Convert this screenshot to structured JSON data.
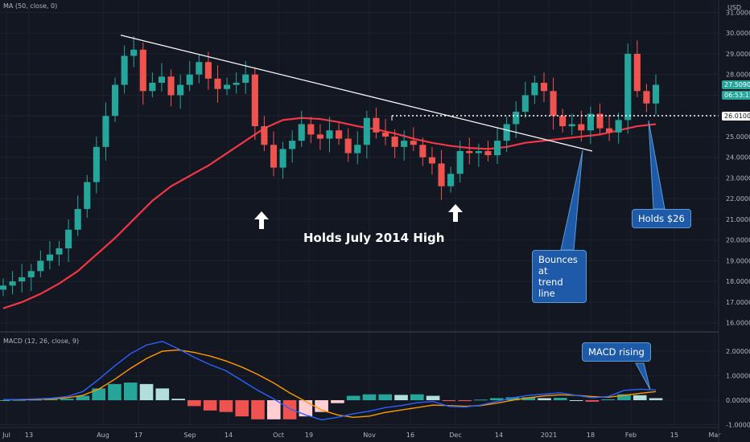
{
  "indicators": {
    "ma_label": "MA (50, close, 0)",
    "macd_label": "MACD (12, 26, close, 9)"
  },
  "currency": "USD",
  "tags": {
    "price": "27.50900",
    "countdown": "06:53:12",
    "level": "26.01000"
  },
  "annotations": {
    "holds_high": "Holds July 2014 High",
    "bounces_line1": "Bounces at",
    "bounces_line2": "trend line",
    "holds_26": "Holds $26",
    "macd_rising": "MACD rising"
  },
  "colors": {
    "background": "#131722",
    "up": "#26a69a",
    "down": "#ef5350",
    "ma": "#f23645",
    "macd": "#2962ff",
    "signal": "#ff9800",
    "callout": "#1e5aa8",
    "price_tag": "#26a69a"
  },
  "chart_data": [
    {
      "type": "candlestick",
      "title": "",
      "x_tick_labels": [
        "Jul",
        "13",
        "Aug",
        "17",
        "Sep",
        "14",
        "Oct",
        "19",
        "Nov",
        "16",
        "Dec",
        "14",
        "2021",
        "18",
        "Feb",
        "15",
        "Mar"
      ],
      "y_tick_labels": [
        "16.00000",
        "17.00000",
        "18.00000",
        "19.00000",
        "20.00000",
        "21.00000",
        "22.00000",
        "23.00000",
        "24.00000",
        "25.00000",
        "26.00000",
        "27.00000",
        "28.00000",
        "29.00000",
        "30.00000",
        "31.00000"
      ],
      "ylim": [
        15.6,
        31.6
      ],
      "current_price": 27.509,
      "horizontal_level": 26.01,
      "trend_line": {
        "from": [
          "Aug 5",
          29.9
        ],
        "to": [
          "Jan 22",
          24.3
        ]
      },
      "ma_series": {
        "name": "MA (50, close, 0)",
        "values": [
          16.7,
          17.0,
          17.4,
          17.9,
          18.5,
          19.3,
          20.1,
          21.0,
          21.9,
          22.6,
          23.1,
          23.6,
          24.2,
          24.8,
          25.4,
          25.8,
          25.9,
          25.85,
          25.7,
          25.5,
          25.35,
          25.15,
          24.9,
          24.7,
          24.55,
          24.45,
          24.4,
          24.5,
          24.7,
          24.8,
          24.9,
          25.0,
          25.1,
          25.3,
          25.5,
          25.6
        ]
      },
      "closes": [
        17.8,
        18.0,
        18.2,
        18.5,
        19.0,
        19.3,
        19.6,
        20.5,
        21.5,
        22.8,
        24.5,
        26.0,
        27.5,
        28.9,
        29.2,
        27.2,
        27.6,
        27.9,
        27.0,
        27.5,
        28.0,
        28.6,
        27.8,
        27.3,
        27.5,
        27.6,
        28.0,
        25.5,
        24.6,
        23.5,
        24.4,
        24.8,
        25.6,
        25.1,
        24.9,
        25.3,
        24.9,
        24.2,
        24.6,
        25.9,
        25.2,
        25.0,
        24.5,
        24.8,
        24.6,
        24.0,
        23.7,
        22.6,
        23.2,
        24.3,
        24.2,
        24.3,
        24.1,
        24.8,
        25.6,
        26.2,
        27.0,
        27.6,
        27.2,
        26.0,
        25.5,
        25.6,
        25.3,
        26.1,
        25.4,
        25.2,
        25.8,
        29.0,
        27.2,
        26.6,
        27.5
      ]
    },
    {
      "type": "macd",
      "title": "",
      "y_tick_labels": [
        "2.00000",
        "1.00000",
        "0.00000",
        "-1.00000"
      ],
      "ylim": [
        -1.2,
        2.6
      ],
      "series": [
        {
          "name": "MACD",
          "values": [
            0.02,
            0.03,
            0.05,
            0.08,
            0.15,
            0.35,
            0.85,
            1.4,
            1.9,
            2.25,
            2.4,
            2.1,
            1.75,
            1.45,
            1.2,
            0.8,
            0.4,
            0.05,
            -0.35,
            -0.6,
            -0.8,
            -0.7,
            -0.55,
            -0.45,
            -0.3,
            -0.22,
            -0.1,
            -0.05,
            -0.25,
            -0.28,
            -0.2,
            -0.05,
            0.1,
            0.2,
            0.25,
            0.3,
            0.2,
            0.1,
            0.15,
            0.4,
            0.45,
            0.42
          ]
        },
        {
          "name": "Signal",
          "values": [
            0.02,
            0.02,
            0.03,
            0.05,
            0.1,
            0.2,
            0.45,
            0.85,
            1.3,
            1.7,
            2.0,
            2.05,
            1.95,
            1.8,
            1.6,
            1.35,
            1.05,
            0.7,
            0.3,
            -0.05,
            -0.4,
            -0.6,
            -0.7,
            -0.65,
            -0.5,
            -0.4,
            -0.3,
            -0.2,
            -0.22,
            -0.25,
            -0.22,
            -0.12,
            0.0,
            0.1,
            0.18,
            0.22,
            0.2,
            0.15,
            0.12,
            0.2,
            0.28,
            0.35
          ]
        }
      ]
    }
  ]
}
